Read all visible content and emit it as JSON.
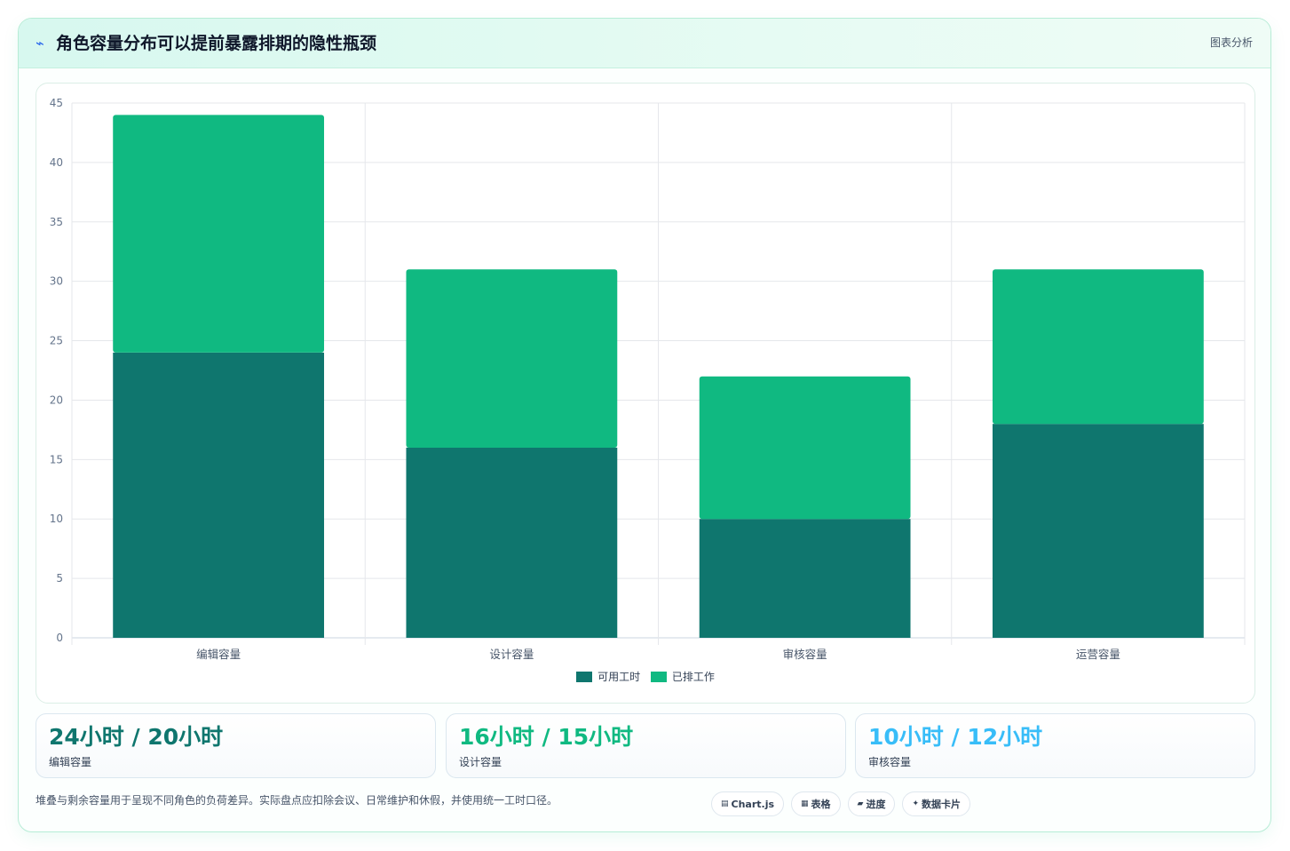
{
  "header": {
    "icon": "⌁",
    "icon_name": "pulse-icon",
    "title": "角色容量分布可以提前暴露排期的隐性瓶颈",
    "tag": "图表分析"
  },
  "chart_data": {
    "type": "bar",
    "stacked": true,
    "categories": [
      "编辑容量",
      "设计容量",
      "审核容量",
      "运营容量"
    ],
    "series": [
      {
        "name": "可用工时",
        "values": [
          24,
          16,
          10,
          18
        ],
        "color": "#0f766e"
      },
      {
        "name": "已排工作",
        "values": [
          20,
          15,
          12,
          13
        ],
        "color": "#10b981"
      }
    ],
    "ylim": [
      0,
      45
    ],
    "yticks": [
      0,
      5,
      10,
      15,
      20,
      25,
      30,
      35,
      40,
      45
    ],
    "grid": true,
    "legend_position": "bottom"
  },
  "stats": [
    {
      "value": "24小时 / 20小时",
      "label": "编辑容量",
      "color": "#0f766e"
    },
    {
      "value": "16小时 / 15小时",
      "label": "设计容量",
      "color": "#10b981"
    },
    {
      "value": "10小时 / 12小时",
      "label": "审核容量",
      "color": "#38bdf8"
    }
  ],
  "footnote": "堆叠与剩余容量用于呈现不同角色的负荷差异。实际盘点应扣除会议、日常维护和休假，并使用统一工时口径。",
  "badges": [
    {
      "icon": "▤",
      "icon_name": "chart-icon",
      "label": "Chart.js"
    },
    {
      "icon": "▦",
      "icon_name": "table-icon",
      "label": "表格"
    },
    {
      "icon": "▰",
      "icon_name": "progress-icon",
      "label": "进度"
    },
    {
      "icon": "✦",
      "icon_name": "sparkle-icon",
      "label": "数据卡片"
    }
  ]
}
